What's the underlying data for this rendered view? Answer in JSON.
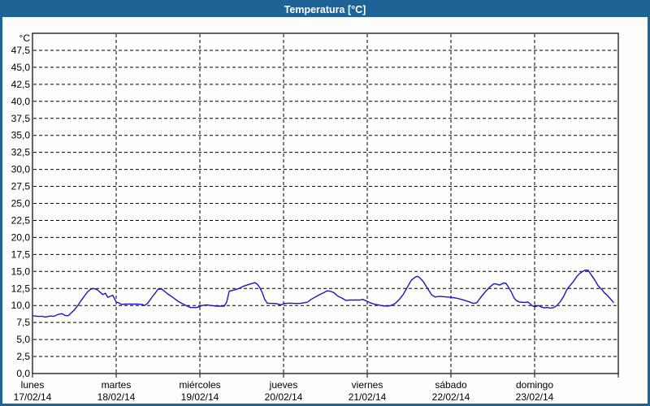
{
  "window": {
    "title": "Temperatura [°C]"
  },
  "colors": {
    "titlebar_bg": "#1D6396",
    "window_border": "#1D6396",
    "body_bg": "#FDFDFB",
    "grid": "#000000",
    "axis": "#000000",
    "text": "#000000",
    "line": "#1818C0"
  },
  "chart_data": {
    "type": "line",
    "title": "Temperatura [°C]",
    "ylabel": "°C",
    "ylim": [
      0,
      50
    ],
    "y_tick_step": 2.5,
    "y_tick_labels": [
      "47,5",
      "45,0",
      "42,5",
      "40,0",
      "37,5",
      "35,0",
      "32,5",
      "30,0",
      "27,5",
      "25,0",
      "22,5",
      "20,0",
      "17,5",
      "15,0",
      "12,5",
      "10,0",
      "7,5",
      "5,0",
      "2,5",
      "0,0"
    ],
    "grid": "dashed",
    "legend": "none",
    "x_range_hours": [
      0,
      168
    ],
    "x_days": [
      {
        "name": "lunes",
        "date": "17/02/14"
      },
      {
        "name": "martes",
        "date": "18/02/14"
      },
      {
        "name": "miércoles",
        "date": "19/02/14"
      },
      {
        "name": "jueves",
        "date": "20/02/14"
      },
      {
        "name": "viernes",
        "date": "21/02/14"
      },
      {
        "name": "sábado",
        "date": "22/02/14"
      },
      {
        "name": "domingo",
        "date": "23/02/14"
      }
    ],
    "series": [
      {
        "name": "Temperatura",
        "color": "#1818C0",
        "points": [
          [
            0,
            8.5
          ],
          [
            1.4,
            8.4
          ],
          [
            2.8,
            8.4
          ],
          [
            3.7,
            8.3
          ],
          [
            5.1,
            8.45
          ],
          [
            6,
            8.4
          ],
          [
            7.4,
            8.7
          ],
          [
            8.4,
            8.8
          ],
          [
            9.3,
            8.55
          ],
          [
            10.2,
            8.5
          ],
          [
            11.1,
            8.9
          ],
          [
            12.1,
            9.4
          ],
          [
            13,
            10
          ],
          [
            13.9,
            10.7
          ],
          [
            14.9,
            11.4
          ],
          [
            15.8,
            12
          ],
          [
            16.7,
            12.4
          ],
          [
            17.6,
            12.5
          ],
          [
            18.6,
            12.3
          ],
          [
            19.5,
            11.9
          ],
          [
            20.2,
            11.6
          ],
          [
            20.9,
            11.8
          ],
          [
            21.6,
            11.2
          ],
          [
            22.3,
            11.35
          ],
          [
            23,
            11.5
          ],
          [
            23.5,
            11
          ],
          [
            24,
            10.5
          ],
          [
            24.7,
            10.4
          ],
          [
            25.5,
            10.15
          ],
          [
            26.5,
            10.2
          ],
          [
            28,
            10.2
          ],
          [
            30,
            10.2
          ],
          [
            31.5,
            10.15
          ],
          [
            32.1,
            10
          ],
          [
            33,
            10.3
          ],
          [
            34.1,
            11.1
          ],
          [
            35.3,
            11.9
          ],
          [
            36,
            12.4
          ],
          [
            37.1,
            12.4
          ],
          [
            38.8,
            11.7
          ],
          [
            40.2,
            11.2
          ],
          [
            41.8,
            10.6
          ],
          [
            43.6,
            10.1
          ],
          [
            45.3,
            9.7
          ],
          [
            47.1,
            9.7
          ],
          [
            48.7,
            10
          ],
          [
            49.9,
            10.1
          ],
          [
            51.1,
            10
          ],
          [
            52.9,
            9.9
          ],
          [
            55,
            9.9
          ],
          [
            55.7,
            10.5
          ],
          [
            56.4,
            12.1
          ],
          [
            58,
            12.3
          ],
          [
            59.2,
            12.5
          ],
          [
            60.4,
            12.8
          ],
          [
            61.5,
            13
          ],
          [
            62.7,
            13.2
          ],
          [
            63.8,
            13.35
          ],
          [
            64.5,
            13.1
          ],
          [
            65.2,
            12.6
          ],
          [
            65.9,
            11.9
          ],
          [
            66.6,
            10.9
          ],
          [
            67.3,
            10.35
          ],
          [
            68.5,
            10.3
          ],
          [
            69.6,
            10.3
          ],
          [
            71.3,
            10.1
          ],
          [
            72.4,
            10.3
          ],
          [
            73.8,
            10.35
          ],
          [
            75.2,
            10.3
          ],
          [
            76.6,
            10.3
          ],
          [
            78,
            10.4
          ],
          [
            78.9,
            10.5
          ],
          [
            79.9,
            10.9
          ],
          [
            81.3,
            11.3
          ],
          [
            82.4,
            11.6
          ],
          [
            83.6,
            11.9
          ],
          [
            84.5,
            12.15
          ],
          [
            85.4,
            12.1
          ],
          [
            86.4,
            11.9
          ],
          [
            87.5,
            11.4
          ],
          [
            88.7,
            11.1
          ],
          [
            89.8,
            10.75
          ],
          [
            91,
            10.8
          ],
          [
            92.4,
            10.8
          ],
          [
            93.8,
            10.8
          ],
          [
            94.7,
            10.9
          ],
          [
            95.6,
            10.7
          ],
          [
            96.8,
            10.4
          ],
          [
            98,
            10.2
          ],
          [
            99.1,
            10.1
          ],
          [
            100.3,
            9.95
          ],
          [
            101.7,
            9.9
          ],
          [
            102.8,
            10
          ],
          [
            104,
            10.3
          ],
          [
            105.2,
            10.9
          ],
          [
            106.3,
            11.6
          ],
          [
            107.5,
            12.7
          ],
          [
            108.6,
            13.7
          ],
          [
            109.6,
            14.1
          ],
          [
            110.3,
            14.3
          ],
          [
            111,
            14.1
          ],
          [
            112.1,
            13.5
          ],
          [
            113.3,
            12.5
          ],
          [
            114.4,
            11.6
          ],
          [
            115.4,
            11.25
          ],
          [
            116.8,
            11.35
          ],
          [
            118.6,
            11.25
          ],
          [
            119.8,
            11.2
          ],
          [
            121.4,
            11.1
          ],
          [
            123,
            10.9
          ],
          [
            124.9,
            10.6
          ],
          [
            126.5,
            10.3
          ],
          [
            127.4,
            10.4
          ],
          [
            128.4,
            11.1
          ],
          [
            130,
            12.1
          ],
          [
            131.1,
            12.7
          ],
          [
            132.3,
            13.2
          ],
          [
            133,
            13.15
          ],
          [
            133.9,
            13
          ],
          [
            135.1,
            13.3
          ],
          [
            135.8,
            13.25
          ],
          [
            136.5,
            12.7
          ],
          [
            137.4,
            11.9
          ],
          [
            138.1,
            11.1
          ],
          [
            138.8,
            10.7
          ],
          [
            139.7,
            10.5
          ],
          [
            141.1,
            10.45
          ],
          [
            142.1,
            10.5
          ],
          [
            142.8,
            10.2
          ],
          [
            143.5,
            9.9
          ],
          [
            144.4,
            9.85
          ],
          [
            145.1,
            10
          ],
          [
            145.8,
            9.8
          ],
          [
            146.7,
            9.65
          ],
          [
            147.7,
            9.7
          ],
          [
            148.6,
            9.6
          ],
          [
            149.5,
            9.7
          ],
          [
            150.4,
            10
          ],
          [
            151.4,
            10.6
          ],
          [
            152.3,
            11.3
          ],
          [
            153.2,
            12.3
          ],
          [
            154.1,
            12.9
          ],
          [
            155.1,
            13.5
          ],
          [
            156,
            14.2
          ],
          [
            156.9,
            14.7
          ],
          [
            157.8,
            15
          ],
          [
            158.5,
            15.2
          ],
          [
            159.4,
            15.15
          ],
          [
            160.1,
            14.6
          ],
          [
            161.3,
            13.7
          ],
          [
            162.2,
            12.9
          ],
          [
            163.2,
            12.4
          ],
          [
            164.1,
            11.8
          ],
          [
            164.8,
            11.5
          ],
          [
            165.5,
            11.1
          ],
          [
            166.2,
            10.7
          ],
          [
            166.7,
            10.4
          ]
        ]
      }
    ]
  }
}
